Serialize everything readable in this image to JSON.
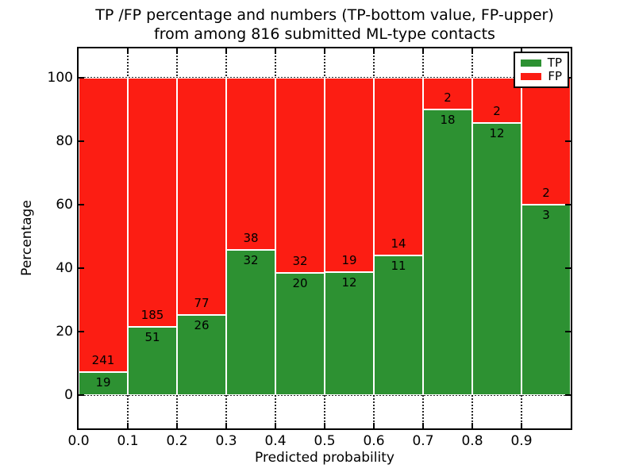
{
  "chart_data": {
    "type": "bar",
    "stacked": true,
    "normalized_to": 100,
    "title_line1": "TP /FP percentage and numbers (TP-bottom value, FP-upper)",
    "title_line2": "from among 816 submitted ML-type contacts",
    "xlabel": "Predicted probability",
    "ylabel": "Percentage",
    "total_contacts": 816,
    "bin_width": 0.1,
    "bins": [
      {
        "range_start": 0.0,
        "tp": 19,
        "fp": 241
      },
      {
        "range_start": 0.1,
        "tp": 51,
        "fp": 185
      },
      {
        "range_start": 0.2,
        "tp": 26,
        "fp": 77
      },
      {
        "range_start": 0.3,
        "tp": 32,
        "fp": 38
      },
      {
        "range_start": 0.4,
        "tp": 20,
        "fp": 32
      },
      {
        "range_start": 0.5,
        "tp": 12,
        "fp": 19
      },
      {
        "range_start": 0.6,
        "tp": 11,
        "fp": 14
      },
      {
        "range_start": 0.7,
        "tp": 18,
        "fp": 2
      },
      {
        "range_start": 0.8,
        "tp": 12,
        "fp": 2
      },
      {
        "range_start": 0.9,
        "tp": 3,
        "fp": 2
      }
    ],
    "xticks": [
      "0.0",
      "0.1",
      "0.2",
      "0.3",
      "0.4",
      "0.5",
      "0.6",
      "0.7",
      "0.8",
      "0.9"
    ],
    "yticks": [
      0,
      20,
      40,
      60,
      80,
      100
    ],
    "xlim": [
      0.0,
      1.0
    ],
    "ylim": [
      -10.5,
      109.25
    ],
    "grid": "dotted",
    "legend_position": "upper right",
    "legend": [
      {
        "label": "TP",
        "color": "#2d9132"
      },
      {
        "label": "FP",
        "color": "#fc1d13"
      }
    ]
  }
}
